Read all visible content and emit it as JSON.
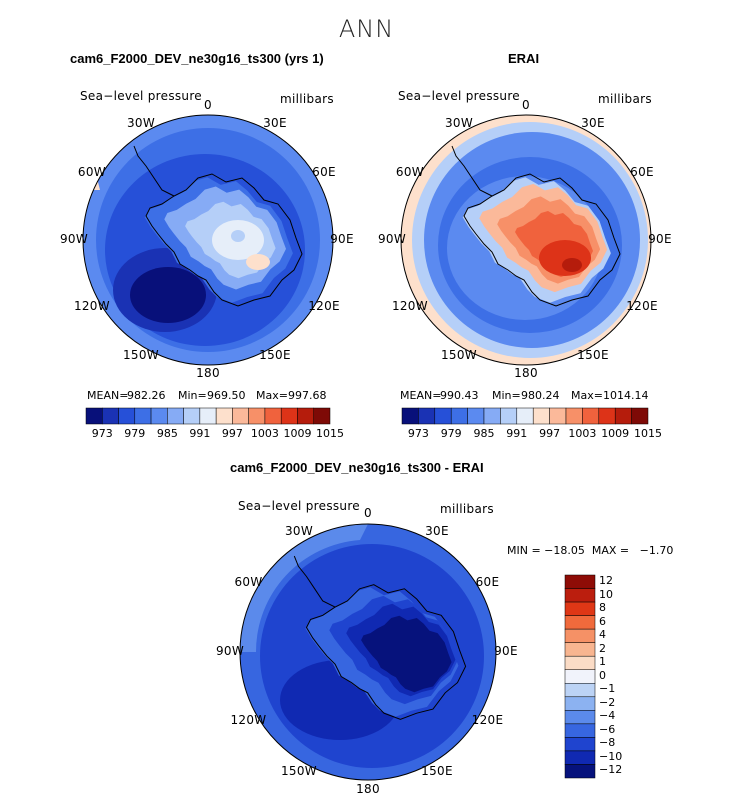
{
  "figure": {
    "title": "ANN"
  },
  "panels": [
    {
      "title": "cam6_F2000_DEV_ne30g16_ts300 (yrs 1)",
      "left_label": "Sea−level pressure",
      "right_label": "millibars",
      "stats": {
        "mean_label": "MEAN=",
        "mean": "982.26",
        "min_label": "Min=",
        "min": "969.50",
        "max_label": "Max=",
        "max": "997.68"
      }
    },
    {
      "title": "ERAI",
      "left_label": "Sea−level pressure",
      "right_label": "millibars",
      "stats": {
        "mean_label": "MEAN=",
        "mean": "990.43",
        "min_label": "Min=",
        "min": "980.24",
        "max_label": "Max=",
        "max": "1014.14"
      }
    },
    {
      "title": "cam6_F2000_DEV_ne30g16_ts300 - ERAI",
      "left_label": "Sea−level pressure",
      "right_label": "millibars",
      "minmax_text": "MIN = −18.05  MAX =   −1.70"
    }
  ],
  "map_longitude_labels": [
    "0",
    "30E",
    "60E",
    "90E",
    "120E",
    "150E",
    "180",
    "150W",
    "120W",
    "90W",
    "60W",
    "30W"
  ],
  "abs_colorbar": {
    "colors": [
      "#08107a",
      "#1a32b4",
      "#2650d8",
      "#3d6fe6",
      "#5b8af0",
      "#86abf5",
      "#b5cff8",
      "#e6eef9",
      "#fde0cc",
      "#fbb99a",
      "#f79068",
      "#f0623d",
      "#dd3318",
      "#b51c0c",
      "#7e0a06"
    ],
    "tick_labels": [
      "973",
      "979",
      "985",
      "991",
      "997",
      "1003",
      "1009",
      "1015"
    ]
  },
  "diff_colorbar": {
    "colors_top_to_bottom": [
      "#8e0c06",
      "#bb1e0e",
      "#df3716",
      "#f06a3c",
      "#f59166",
      "#f8b590",
      "#fbdcc6",
      "#f1f3fb",
      "#bcd3f5",
      "#8cb2f1",
      "#5b8aeb",
      "#3766e0",
      "#1f44cf",
      "#1029b2",
      "#06127c"
    ],
    "tick_labels_top_to_bottom": [
      "12",
      "10",
      "8",
      "6",
      "4",
      "2",
      "1",
      "0",
      "−1",
      "−2",
      "−4",
      "−6",
      "−8",
      "−10",
      "−12"
    ]
  },
  "chart_data": [
    {
      "type": "heatmap",
      "projection": "south polar stereographic",
      "title": "cam6_F2000_DEV_ne30g16_ts300 (yrs 1)",
      "variable": "Sea-level pressure",
      "units": "millibars",
      "mean": 982.26,
      "min": 969.5,
      "max": 997.68,
      "contour_levels": [
        973,
        976,
        979,
        982,
        985,
        988,
        991,
        994,
        997,
        1000,
        1003,
        1006,
        1009,
        1012,
        1015
      ],
      "lon_labels": [
        "0",
        "30E",
        "60E",
        "90E",
        "120E",
        "150E",
        "180",
        "150W",
        "120W",
        "90W",
        "60W",
        "30W"
      ]
    },
    {
      "type": "heatmap",
      "projection": "south polar stereographic",
      "title": "ERAI",
      "variable": "Sea-level pressure",
      "units": "millibars",
      "mean": 990.43,
      "min": 980.24,
      "max": 1014.14,
      "contour_levels": [
        973,
        976,
        979,
        982,
        985,
        988,
        991,
        994,
        997,
        1000,
        1003,
        1006,
        1009,
        1012,
        1015
      ],
      "lon_labels": [
        "0",
        "30E",
        "60E",
        "90E",
        "120E",
        "150E",
        "180",
        "150W",
        "120W",
        "90W",
        "60W",
        "30W"
      ]
    },
    {
      "type": "heatmap",
      "projection": "south polar stereographic",
      "title": "cam6_F2000_DEV_ne30g16_ts300 - ERAI",
      "variable": "Sea-level pressure",
      "units": "millibars",
      "min": -18.05,
      "max": -1.7,
      "contour_levels": [
        -12,
        -10,
        -8,
        -6,
        -4,
        -2,
        -1,
        0,
        1,
        2,
        4,
        6,
        8,
        10,
        12
      ],
      "lon_labels": [
        "0",
        "30E",
        "60E",
        "90E",
        "120E",
        "150E",
        "180",
        "150W",
        "120W",
        "90W",
        "60W",
        "30W"
      ]
    }
  ]
}
